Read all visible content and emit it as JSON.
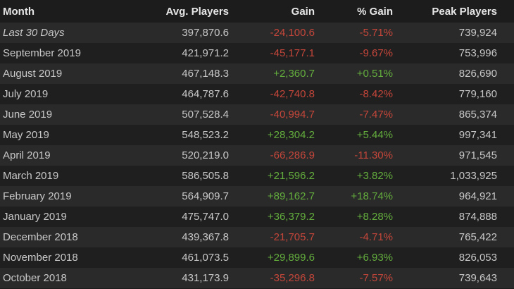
{
  "table": {
    "header": [
      "Month",
      "Avg. Players",
      "Gain",
      "% Gain",
      "Peak Players"
    ],
    "rows": [
      [
        "Last 30 Days",
        "397,870.6",
        "-24,100.6",
        "-5.71%",
        "739,924"
      ],
      [
        "September 2019",
        "421,971.2",
        "-45,177.1",
        "-9.67%",
        "753,996"
      ],
      [
        "August 2019",
        "467,148.3",
        "+2,360.7",
        "+0.51%",
        "826,690"
      ],
      [
        "July 2019",
        "464,787.6",
        "-42,740.8",
        "-8.42%",
        "779,160"
      ],
      [
        "June 2019",
        "507,528.4",
        "-40,994.7",
        "-7.47%",
        "865,374"
      ],
      [
        "May 2019",
        "548,523.2",
        "+28,304.2",
        "+5.44%",
        "997,341"
      ],
      [
        "April 2019",
        "520,219.0",
        "-66,286.9",
        "-11.30%",
        "971,545"
      ],
      [
        "March 2019",
        "586,505.8",
        "+21,596.2",
        "+3.82%",
        "1,033,925"
      ],
      [
        "February 2019",
        "564,909.7",
        "+89,162.7",
        "+18.74%",
        "964,921"
      ],
      [
        "January 2019",
        "475,747.0",
        "+36,379.2",
        "+8.28%",
        "874,888"
      ],
      [
        "December 2018",
        "439,367.8",
        "-21,705.7",
        "-4.71%",
        "765,422"
      ],
      [
        "November 2018",
        "461,073.5",
        "+29,899.6",
        "+6.93%",
        "826,053"
      ],
      [
        "October 2018",
        "431,173.9",
        "-35,296.8",
        "-7.57%",
        "739,643"
      ]
    ]
  }
}
